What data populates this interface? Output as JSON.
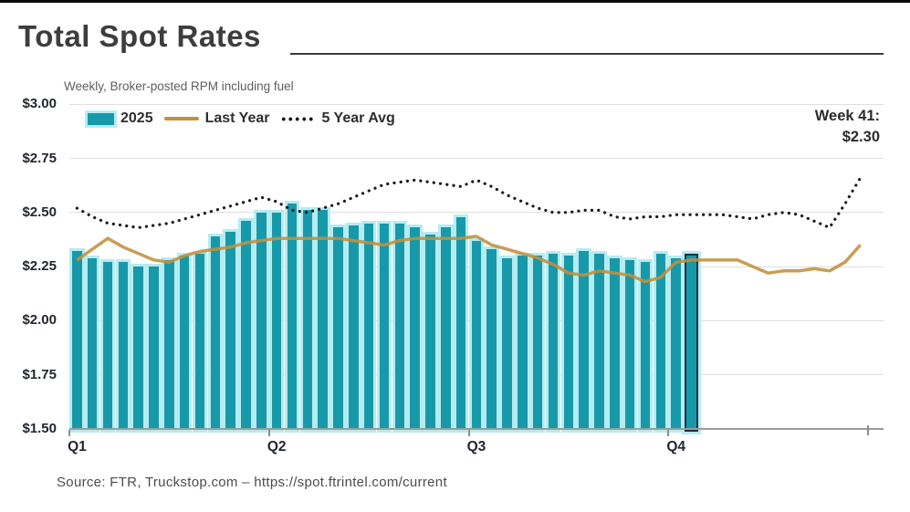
{
  "header": {
    "title": "Total Spot Rates",
    "subtitle": "Weekly, Broker-posted RPM including fuel"
  },
  "legend": {
    "items": [
      {
        "label": "2025",
        "swatch": "bar"
      },
      {
        "label": "Last Year",
        "swatch": "line"
      },
      {
        "label": "5 Year Avg",
        "swatch": "dotted"
      }
    ]
  },
  "annotation": {
    "line1": "Week 41:",
    "line2": "$2.30"
  },
  "source": "Source: FTR, Truckstop.com – https://spot.ftrintel.com/current",
  "colors": {
    "bar": "#1899a9",
    "bar_glow": "#b5ecf1",
    "highlight_outline": "#1d3040",
    "last_year_line": "#c28f3c",
    "five_year_avg": "#1a1a1a",
    "grid": "#dedede",
    "axis": "#9b9b9b",
    "text_dark": "#21262e"
  },
  "chart_data": {
    "type": "bar",
    "subtype": "combo-bar-with-lines",
    "title": "Total Spot Rates",
    "subtitle": "Weekly, Broker-posted RPM including fuel",
    "xlabel": "",
    "ylabel": "Broker-posted RPM including fuel ($)",
    "ylim": [
      1.5,
      3.0
    ],
    "grid": "horizontal",
    "legend_position": "top-left",
    "weeks_total": 52,
    "highlight_week": 41,
    "highlight_value": 2.3,
    "y_axis": {
      "ticks": [
        {
          "label": "$3.00",
          "value": 3.0
        },
        {
          "label": "$2.75",
          "value": 2.75
        },
        {
          "label": "$2.50",
          "value": 2.5
        },
        {
          "label": "$2.25",
          "value": 2.25
        },
        {
          "label": "$2.00",
          "value": 2.0
        },
        {
          "label": "$1.75",
          "value": 1.75
        },
        {
          "label": "$1.50",
          "value": 1.5
        }
      ]
    },
    "x_axis": {
      "labels": [
        "Q1",
        "Q2",
        "Q3",
        "Q4"
      ],
      "label_weeks": [
        1,
        14,
        27,
        40
      ],
      "tick_boundary_weeks": [
        0,
        13,
        26,
        39,
        52
      ]
    },
    "series": [
      {
        "name": "2025",
        "type": "bar",
        "color": "#1899a9",
        "weeks": [
          1,
          2,
          3,
          4,
          5,
          6,
          7,
          8,
          9,
          10,
          11,
          12,
          13,
          14,
          15,
          16,
          17,
          18,
          19,
          20,
          21,
          22,
          23,
          24,
          25,
          26,
          27,
          28,
          29,
          30,
          31,
          32,
          33,
          34,
          35,
          36,
          37,
          38,
          39,
          40,
          41
        ],
        "values": [
          2.32,
          2.29,
          2.27,
          2.27,
          2.25,
          2.25,
          2.28,
          2.3,
          2.31,
          2.39,
          2.41,
          2.46,
          2.5,
          2.5,
          2.54,
          2.51,
          2.51,
          2.43,
          2.44,
          2.45,
          2.45,
          2.45,
          2.43,
          2.4,
          2.43,
          2.48,
          2.37,
          2.33,
          2.29,
          2.3,
          2.3,
          2.31,
          2.3,
          2.32,
          2.31,
          2.29,
          2.28,
          2.27,
          2.31,
          2.29,
          2.3
        ]
      },
      {
        "name": "Last Year",
        "type": "line",
        "color": "#c28f3c",
        "weeks": [
          1,
          2,
          3,
          4,
          5,
          6,
          7,
          8,
          9,
          10,
          11,
          12,
          13,
          14,
          15,
          16,
          17,
          18,
          19,
          20,
          21,
          22,
          23,
          24,
          25,
          26,
          27,
          28,
          29,
          30,
          31,
          32,
          33,
          34,
          35,
          36,
          37,
          38,
          39,
          40,
          41,
          42,
          43,
          44,
          45,
          46,
          47,
          48,
          49,
          50,
          51,
          52
        ],
        "values": [
          2.28,
          2.33,
          2.38,
          2.34,
          2.31,
          2.28,
          2.27,
          2.3,
          2.32,
          2.33,
          2.34,
          2.36,
          2.37,
          2.38,
          2.38,
          2.38,
          2.38,
          2.38,
          2.37,
          2.36,
          2.35,
          2.37,
          2.38,
          2.38,
          2.38,
          2.38,
          2.39,
          2.35,
          2.33,
          2.31,
          2.29,
          2.26,
          2.22,
          2.21,
          2.23,
          2.22,
          2.21,
          2.18,
          2.2,
          2.27,
          2.28,
          2.28,
          2.28,
          2.28,
          2.25,
          2.22,
          2.23,
          2.23,
          2.24,
          2.23,
          2.27,
          2.35
        ]
      },
      {
        "name": "5 Year Avg",
        "type": "dotted-line",
        "color": "#1a1a1a",
        "weeks": [
          1,
          2,
          3,
          4,
          5,
          6,
          7,
          8,
          9,
          10,
          11,
          12,
          13,
          14,
          15,
          16,
          17,
          18,
          19,
          20,
          21,
          22,
          23,
          24,
          25,
          26,
          27,
          28,
          29,
          30,
          31,
          32,
          33,
          34,
          35,
          36,
          37,
          38,
          39,
          40,
          41,
          42,
          43,
          44,
          45,
          46,
          47,
          48,
          49,
          50,
          51,
          52
        ],
        "values": [
          2.52,
          2.48,
          2.45,
          2.44,
          2.43,
          2.44,
          2.45,
          2.47,
          2.49,
          2.51,
          2.53,
          2.55,
          2.57,
          2.55,
          2.51,
          2.5,
          2.52,
          2.54,
          2.57,
          2.6,
          2.63,
          2.64,
          2.65,
          2.64,
          2.63,
          2.62,
          2.65,
          2.62,
          2.58,
          2.55,
          2.52,
          2.5,
          2.5,
          2.51,
          2.51,
          2.48,
          2.47,
          2.48,
          2.48,
          2.49,
          2.49,
          2.49,
          2.49,
          2.48,
          2.47,
          2.49,
          2.5,
          2.49,
          2.46,
          2.43,
          2.54,
          2.66
        ]
      }
    ]
  }
}
